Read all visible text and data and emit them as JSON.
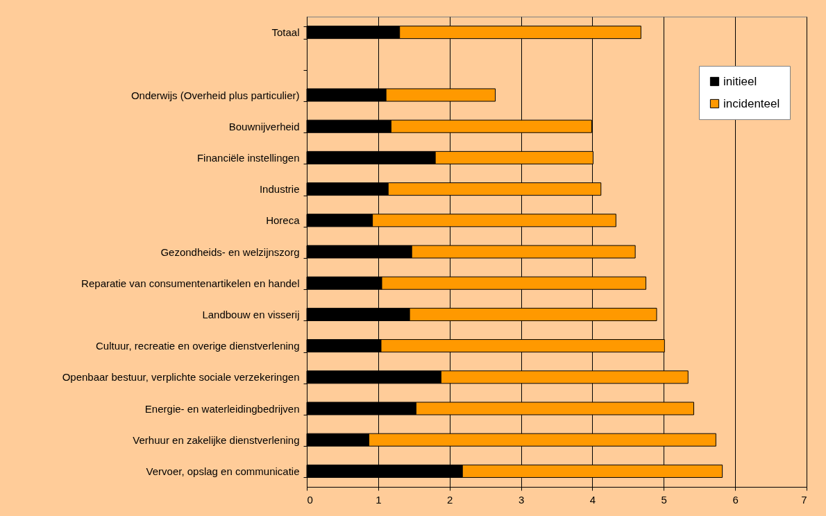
{
  "chart_data": {
    "type": "bar",
    "orientation": "horizontal",
    "stacked": true,
    "categories": [
      "Totaal",
      null,
      "Onderwijs (Overheid plus particulier)",
      "Bouwnijverheid",
      "Financiële instellingen",
      "Industrie",
      "Horeca",
      "Gezondheids- en welzijnszorg",
      "Reparatie van consumentenartikelen en handel",
      "Landbouw en visserij",
      "Cultuur, recreatie en overige dienstverlening",
      "Openbaar bestuur, verplichte sociale verzekeringen",
      "Energie- en waterleidingbedrijven",
      "Verhuur en zakelijke dienstverlening",
      "Vervoer, opslag en communicatie"
    ],
    "series": [
      {
        "name": "initieel",
        "color": "#000000",
        "values": [
          1.3,
          null,
          1.11,
          1.18,
          1.8,
          1.14,
          0.92,
          1.47,
          1.05,
          1.44,
          1.04,
          1.88,
          1.53,
          0.87,
          2.18
        ]
      },
      {
        "name": "incidenteel",
        "color": "#ff9900",
        "values": [
          3.38,
          null,
          1.53,
          2.81,
          2.21,
          2.98,
          3.41,
          3.13,
          3.7,
          3.46,
          3.97,
          3.46,
          3.89,
          4.86,
          3.64
        ]
      }
    ],
    "xlim": [
      0,
      7
    ],
    "xticks": [
      0,
      1,
      2,
      3,
      4,
      5,
      6,
      7
    ],
    "grid": "x",
    "legend": "top right"
  }
}
